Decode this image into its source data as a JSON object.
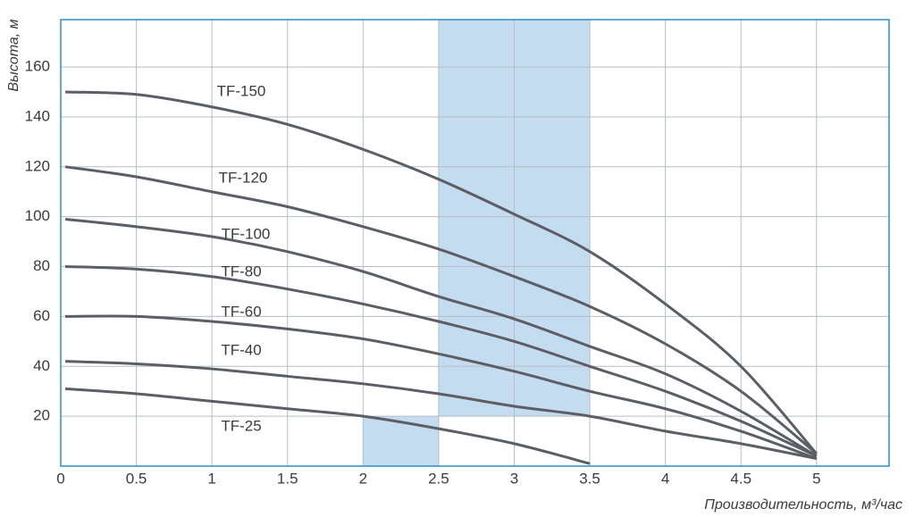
{
  "chart_data": {
    "type": "line",
    "y_label": "Высота, м",
    "x_label": "Производительность, м³/час",
    "xlim": [
      0,
      5.48
    ],
    "ylim": [
      0,
      179
    ],
    "xticks": [
      0,
      0.5,
      1,
      1.5,
      2,
      2.5,
      3,
      3.5,
      4,
      4.5,
      5
    ],
    "yticks": [
      20,
      40,
      60,
      80,
      100,
      120,
      140,
      160
    ],
    "grid": true,
    "highlight_color": "#c4dcf0",
    "highlights": [
      {
        "x": [
          2.5,
          3.5
        ],
        "y": [
          20,
          179
        ]
      },
      {
        "x": [
          2,
          2.5
        ],
        "y": [
          0,
          20
        ]
      }
    ],
    "series": [
      {
        "name": "TF-150",
        "color": "#5d5d66",
        "x": [
          0.03,
          0.5,
          1,
          1.5,
          2,
          2.5,
          3,
          3.5,
          4,
          4.5,
          5
        ],
        "values": [
          150,
          149,
          144,
          137,
          127,
          115,
          101,
          86,
          65,
          40,
          5
        ]
      },
      {
        "name": "TF-120",
        "color": "#5d5d66",
        "x": [
          0.03,
          0.5,
          1,
          1.5,
          2,
          2.5,
          3,
          3.5,
          4,
          4.5,
          5
        ],
        "values": [
          120,
          116,
          110,
          104,
          96,
          87,
          76,
          64,
          49,
          30,
          5
        ]
      },
      {
        "name": "TF-100",
        "color": "#5d5d66",
        "x": [
          0.03,
          0.5,
          1,
          1.5,
          2,
          2.5,
          3,
          3.5,
          4,
          4.5,
          5
        ],
        "values": [
          99,
          96,
          92,
          86,
          78,
          68,
          59,
          48,
          37,
          22,
          4
        ]
      },
      {
        "name": "TF-80",
        "color": "#5d5d66",
        "x": [
          0.03,
          0.5,
          1,
          1.5,
          2,
          2.5,
          3,
          3.5,
          4,
          4.5,
          5
        ],
        "values": [
          80,
          79,
          76,
          71,
          65,
          58,
          50,
          40,
          30,
          18,
          4
        ]
      },
      {
        "name": "TF-60",
        "color": "#5d5d66",
        "x": [
          0.03,
          0.5,
          1,
          1.5,
          2,
          2.5,
          3,
          3.5,
          4,
          4.5,
          5
        ],
        "values": [
          60,
          60,
          58,
          55,
          51,
          45,
          38,
          30,
          23,
          14,
          3
        ]
      },
      {
        "name": "TF-40",
        "color": "#5d5d66",
        "x": [
          0.03,
          0.5,
          1,
          1.5,
          2,
          2.5,
          3,
          3.5,
          4,
          4.5,
          5
        ],
        "values": [
          42,
          41,
          39,
          36,
          33,
          29,
          24,
          20,
          14,
          9,
          3
        ]
      },
      {
        "name": "TF-25",
        "color": "#5d5d66",
        "x": [
          0.03,
          0.5,
          1,
          1.5,
          2,
          2.5,
          3,
          3.5
        ],
        "values": [
          31,
          29,
          26,
          23,
          20,
          15,
          9,
          1
        ]
      }
    ]
  }
}
